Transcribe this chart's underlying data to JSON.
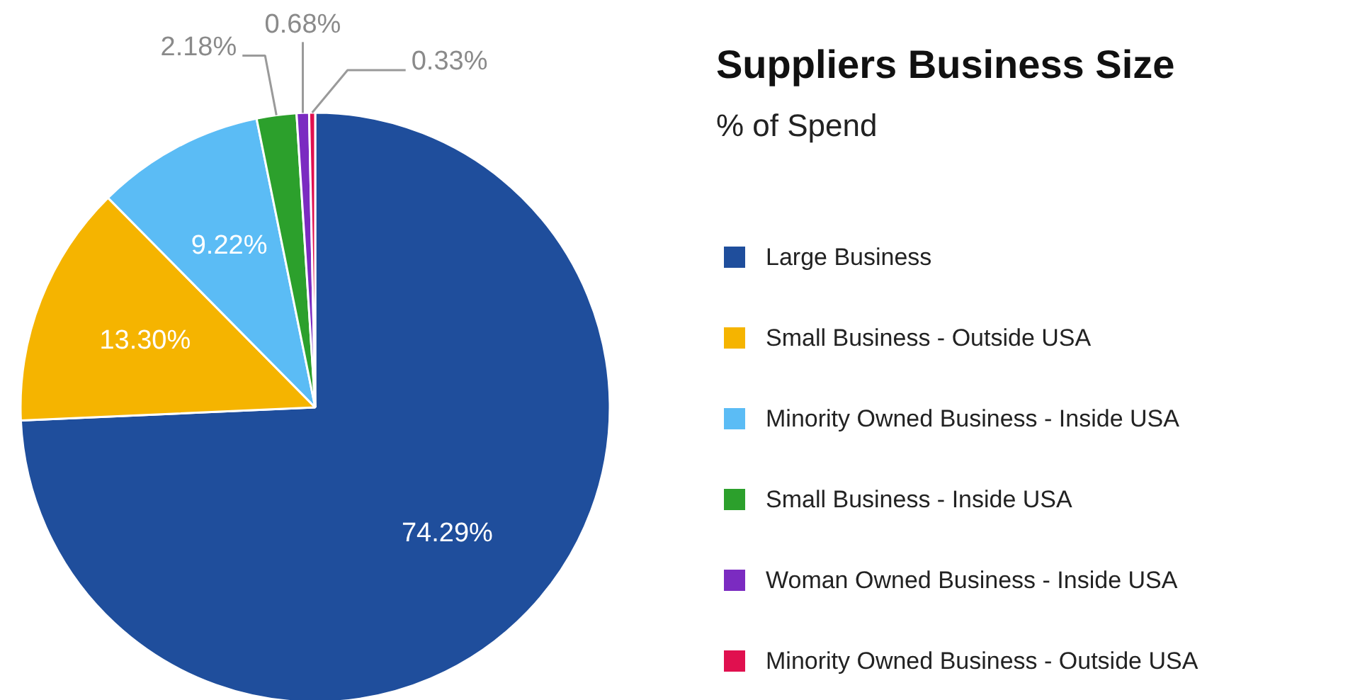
{
  "chart_data": {
    "type": "pie",
    "title": "Suppliers Business Size",
    "subtitle": "% of Spend",
    "categories": [
      "Large Business",
      "Small Business - Outside USA",
      "Minority Owned Business - Inside USA",
      "Small Business - Inside USA",
      "Woman Owned Business - Inside USA",
      "Minority Owned Business - Outside USA"
    ],
    "values": [
      74.29,
      13.3,
      9.22,
      2.18,
      0.68,
      0.33
    ],
    "colors": [
      "#1f4e9c",
      "#f5b400",
      "#5bbcf5",
      "#2ca02c",
      "#7b2bc1",
      "#e0104f"
    ],
    "value_labels": [
      "74.29%",
      "13.30%",
      "9.22%",
      "2.18%",
      "0.68%",
      "0.33%"
    ],
    "legend": "right"
  }
}
